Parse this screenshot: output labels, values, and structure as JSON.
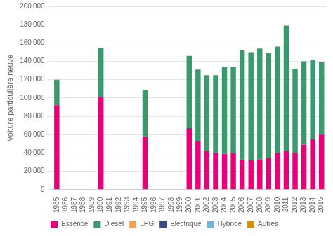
{
  "chart_data": {
    "type": "bar",
    "stacked": true,
    "grid": true,
    "legend": "bottom",
    "ylabel": "Voiture particulière neuve",
    "categories": [
      "1985",
      "1986",
      "1987",
      "1988",
      "1989",
      "1990",
      "1991",
      "1992",
      "1993",
      "1994",
      "1995",
      "1996",
      "1997",
      "1998",
      "1999",
      "2000",
      "2001",
      "2002",
      "2003",
      "2004",
      "2005",
      "2006",
      "2007",
      "2008",
      "2009",
      "2010",
      "2011",
      "2012",
      "2013",
      "2014",
      "2015"
    ],
    "series": [
      {
        "name": "Essence",
        "color": "#e8007a",
        "values": [
          92000,
          0,
          0,
          0,
          0,
          101000,
          0,
          0,
          0,
          0,
          58000,
          0,
          0,
          0,
          0,
          67000,
          53000,
          42000,
          40000,
          39000,
          40000,
          33000,
          32000,
          33000,
          35000,
          40000,
          42000,
          40000,
          49000,
          55000,
          60000
        ]
      },
      {
        "name": "Diesel",
        "color": "#3a9a6e",
        "values": [
          28000,
          0,
          0,
          0,
          0,
          54000,
          0,
          0,
          0,
          0,
          51000,
          0,
          0,
          0,
          0,
          79000,
          78000,
          83000,
          85000,
          95000,
          94000,
          119000,
          118000,
          121000,
          114000,
          116000,
          137000,
          92000,
          91000,
          87000,
          79000
        ]
      },
      {
        "name": "LPG",
        "color": "#f0a050",
        "values": [
          0,
          0,
          0,
          0,
          0,
          0,
          0,
          0,
          0,
          0,
          0,
          0,
          0,
          0,
          0,
          0,
          0,
          0,
          0,
          0,
          0,
          0,
          0,
          0,
          0,
          0,
          0,
          0,
          0,
          0,
          0
        ]
      },
      {
        "name": "Electrique",
        "color": "#3a4a8a",
        "values": [
          0,
          0,
          0,
          0,
          0,
          0,
          0,
          0,
          0,
          0,
          0,
          0,
          0,
          0,
          0,
          0,
          0,
          0,
          0,
          0,
          0,
          0,
          0,
          0,
          0,
          0,
          0,
          0,
          0,
          0,
          0
        ]
      },
      {
        "name": "Hybride",
        "color": "#70b8d8",
        "values": [
          0,
          0,
          0,
          0,
          0,
          0,
          0,
          0,
          0,
          0,
          0,
          0,
          0,
          0,
          0,
          0,
          0,
          0,
          0,
          0,
          0,
          0,
          0,
          0,
          0,
          0,
          0,
          0,
          0,
          0,
          0
        ]
      },
      {
        "name": "Autres",
        "color": "#d4900a",
        "values": [
          0,
          0,
          0,
          0,
          0,
          0,
          0,
          0,
          0,
          0,
          0,
          0,
          0,
          0,
          0,
          0,
          0,
          0,
          0,
          0,
          0,
          0,
          0,
          0,
          0,
          0,
          0,
          0,
          0,
          0,
          0
        ]
      }
    ],
    "ylim": [
      0,
      200000
    ],
    "yticks": [
      0,
      {
        "value": 20000,
        "label": "20 000"
      },
      {
        "value": 40000,
        "label": "40 000"
      },
      {
        "value": 60000,
        "label": "60 000"
      },
      {
        "value": 80000,
        "label": "80 000"
      },
      {
        "value": 100000,
        "label": "100 000"
      },
      {
        "value": 120000,
        "label": "120 000"
      },
      {
        "value": 140000,
        "label": "140 000"
      },
      {
        "value": 160000,
        "label": "160 000"
      },
      {
        "value": 180000,
        "label": "180 000"
      },
      {
        "value": 200000,
        "label": "200 000"
      }
    ]
  }
}
